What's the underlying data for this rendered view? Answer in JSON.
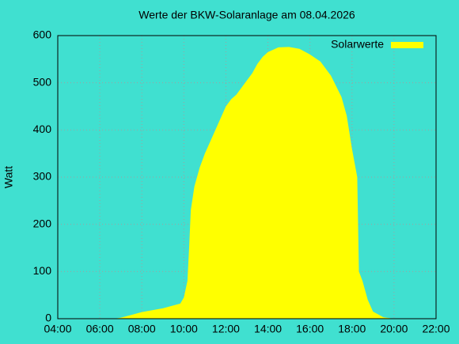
{
  "chart_data": {
    "type": "area",
    "title": "Werte der BKW-Solaranlage am 08.04.2026",
    "ylabel": "Watt",
    "x": [
      6.67,
      7,
      7.5,
      8,
      8.5,
      9,
      9.5,
      9.83,
      10,
      10.17,
      10.25,
      10.33,
      10.5,
      10.75,
      11,
      11.25,
      11.5,
      11.75,
      12,
      12.25,
      12.5,
      12.75,
      13,
      13.25,
      13.5,
      13.75,
      14,
      14.5,
      15,
      15.5,
      16,
      16.5,
      17,
      17.5,
      17.75,
      18,
      18.25,
      18.33,
      18.5,
      18.75,
      19,
      19.5,
      20
    ],
    "series": [
      {
        "name": "Solarwerte",
        "color": "#ffff00",
        "values": [
          0,
          2,
          8,
          14,
          18,
          22,
          28,
          32,
          45,
          80,
          150,
          230,
          280,
          320,
          350,
          375,
          400,
          425,
          450,
          465,
          475,
          490,
          505,
          520,
          540,
          555,
          565,
          575,
          576,
          572,
          560,
          545,
          515,
          470,
          430,
          360,
          300,
          100,
          80,
          40,
          15,
          3,
          0
        ]
      }
    ],
    "xlim": [
      4,
      22
    ],
    "xticks": [
      {
        "value": 4,
        "label": "04:00"
      },
      {
        "value": 6,
        "label": "06:00"
      },
      {
        "value": 8,
        "label": "08:00"
      },
      {
        "value": 10,
        "label": "10:00"
      },
      {
        "value": 12,
        "label": "12:00"
      },
      {
        "value": 14,
        "label": "14:00"
      },
      {
        "value": 16,
        "label": "16:00"
      },
      {
        "value": 18,
        "label": "18:00"
      },
      {
        "value": 20,
        "label": "20:00"
      },
      {
        "value": 22,
        "label": "22:00"
      }
    ],
    "ylim": [
      0,
      600
    ],
    "yticks": [
      0,
      100,
      200,
      300,
      400,
      500,
      600
    ],
    "grid": true,
    "legend": "top-right"
  }
}
